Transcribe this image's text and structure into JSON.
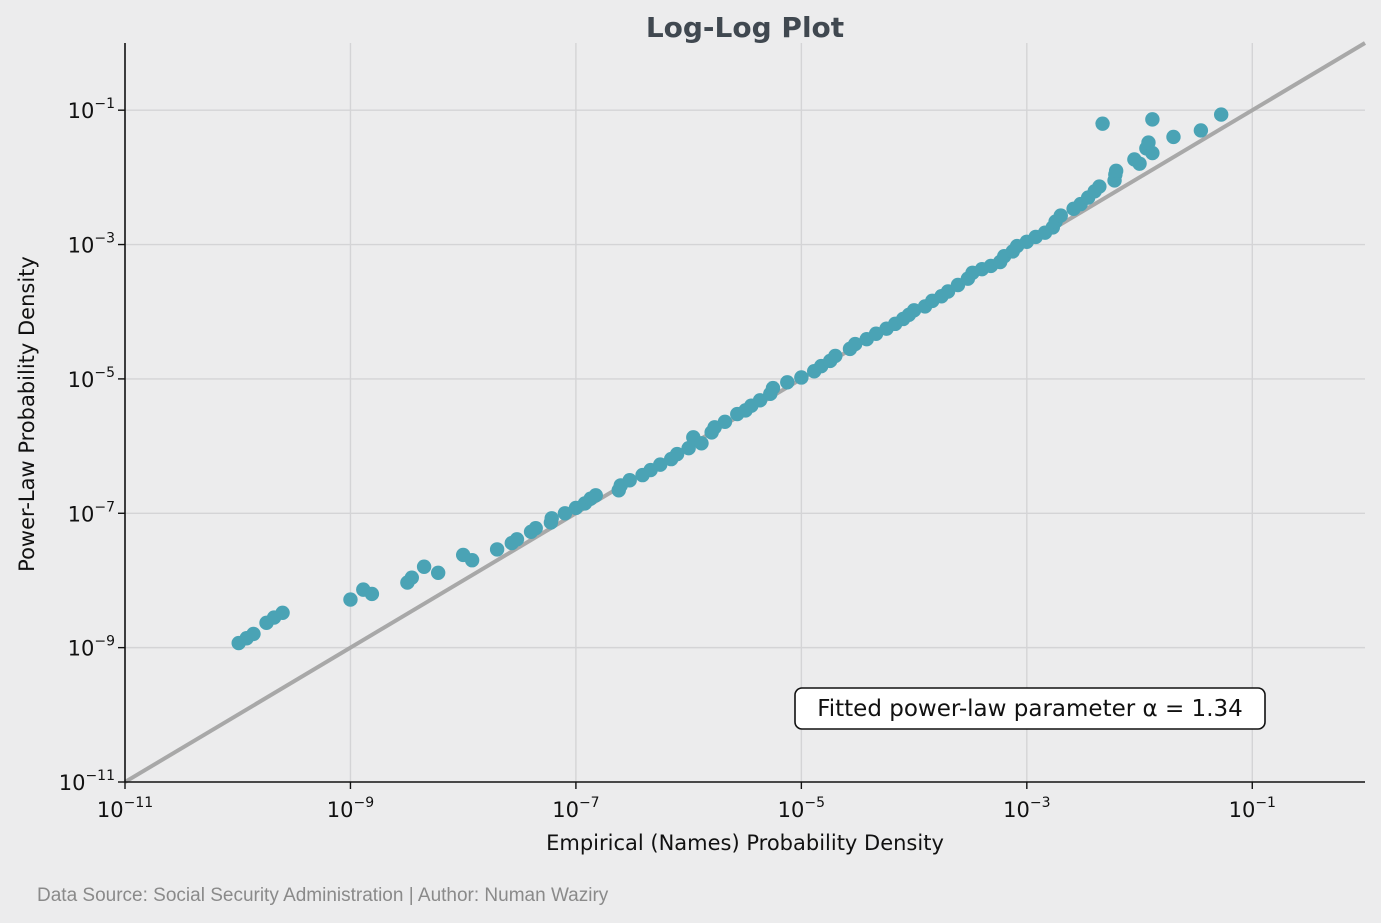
{
  "chart_data": {
    "type": "scatter",
    "title": "Log-Log Plot",
    "xlabel": "Empirical (Names) Probability Density",
    "ylabel": "Power-Law Probability Density",
    "xscale": "log",
    "yscale": "log",
    "xlim": [
      1e-11,
      1
    ],
    "ylim": [
      1e-11,
      1
    ],
    "x_ticks": [
      {
        "base": "10",
        "exp": "−11",
        "value": 1e-11
      },
      {
        "base": "10",
        "exp": "−9",
        "value": 1e-09
      },
      {
        "base": "10",
        "exp": "−7",
        "value": 1e-07
      },
      {
        "base": "10",
        "exp": "−5",
        "value": 1e-05
      },
      {
        "base": "10",
        "exp": "−3",
        "value": 0.001
      },
      {
        "base": "10",
        "exp": "−1",
        "value": 0.1
      }
    ],
    "y_ticks": [
      {
        "base": "10",
        "exp": "−11",
        "value": 1e-11
      },
      {
        "base": "10",
        "exp": "−9",
        "value": 1e-09
      },
      {
        "base": "10",
        "exp": "−7",
        "value": 1e-07
      },
      {
        "base": "10",
        "exp": "−5",
        "value": 1e-05
      },
      {
        "base": "10",
        "exp": "−3",
        "value": 0.001
      },
      {
        "base": "10",
        "exp": "−1",
        "value": 0.1
      }
    ],
    "grid": true,
    "reference_line": {
      "type": "identity",
      "color": "#a8a8a8"
    },
    "point_color": "#4aa3b5",
    "annotation": "Fitted power-law parameter α = 1.34",
    "annotation_position": "bottom-right",
    "points": [
      [
        1.02e-10,
        1.17e-09
      ],
      [
        1.2e-10,
        1.38e-09
      ],
      [
        1.38e-10,
        1.6e-09
      ],
      [
        1.8e-10,
        2.34e-09
      ],
      [
        2.1e-10,
        2.8e-09
      ],
      [
        2.5e-10,
        3.3e-09
      ],
      [
        1e-09,
        5.2e-09
      ],
      [
        1.3e-09,
        7.3e-09
      ],
      [
        1.55e-09,
        6.3e-09
      ],
      [
        3.2e-09,
        9.3e-09
      ],
      [
        3.5e-09,
        1.1e-08
      ],
      [
        4.5e-09,
        1.6e-08
      ],
      [
        6e-09,
        1.3e-08
      ],
      [
        1e-08,
        2.4e-08
      ],
      [
        1.2e-08,
        2e-08
      ],
      [
        2e-08,
        2.9e-08
      ],
      [
        2.7e-08,
        3.6e-08
      ],
      [
        3e-08,
        4.1e-08
      ],
      [
        4e-08,
        5.3e-08
      ],
      [
        4.4e-08,
        6e-08
      ],
      [
        6e-08,
        7.3e-08
      ],
      [
        6.1e-08,
        8.4e-08
      ],
      [
        8e-08,
        1e-07
      ],
      [
        1e-07,
        1.2e-07
      ],
      [
        1.2e-07,
        1.4e-07
      ],
      [
        1.35e-07,
        1.65e-07
      ],
      [
        1.5e-07,
        1.85e-07
      ],
      [
        2.4e-07,
        2.2e-07
      ],
      [
        2.5e-07,
        2.6e-07
      ],
      [
        3e-07,
        3.1e-07
      ],
      [
        3.9e-07,
        3.7e-07
      ],
      [
        4.6e-07,
        4.4e-07
      ],
      [
        5.6e-07,
        5.3e-07
      ],
      [
        7e-07,
        6.4e-07
      ],
      [
        7.9e-07,
        7.6e-07
      ],
      [
        1e-06,
        9.3e-07
      ],
      [
        1.1e-06,
        1.35e-06
      ],
      [
        1.3e-06,
        1.1e-06
      ],
      [
        1.6e-06,
        1.6e-06
      ],
      [
        1.7e-06,
        1.9e-06
      ],
      [
        2.1e-06,
        2.3e-06
      ],
      [
        2.7e-06,
        3e-06
      ],
      [
        3.2e-06,
        3.4e-06
      ],
      [
        3.6e-06,
        4e-06
      ],
      [
        4.3e-06,
        4.8e-06
      ],
      [
        5.3e-06,
        6e-06
      ],
      [
        5.6e-06,
        7.3e-06
      ],
      [
        7.5e-06,
        8.9e-06
      ],
      [
        1e-05,
        1.05e-05
      ],
      [
        1.3e-05,
        1.3e-05
      ],
      [
        1.5e-05,
        1.55e-05
      ],
      [
        1.8e-05,
        1.85e-05
      ],
      [
        2e-05,
        2.2e-05
      ],
      [
        2.7e-05,
        2.8e-05
      ],
      [
        3e-05,
        3.3e-05
      ],
      [
        3.8e-05,
        3.9e-05
      ],
      [
        4.6e-05,
        4.7e-05
      ],
      [
        5.7e-05,
        5.6e-05
      ],
      [
        6.8e-05,
        6.6e-05
      ],
      [
        8e-05,
        7.8e-05
      ],
      [
        9e-05,
        9e-05
      ],
      [
        0.0001,
        0.000105
      ],
      [
        0.000125,
        0.00012
      ],
      [
        0.000145,
        0.000145
      ],
      [
        0.000175,
        0.00017
      ],
      [
        0.0002,
        0.0002
      ],
      [
        0.000245,
        0.00025
      ],
      [
        0.0003,
        0.00031
      ],
      [
        0.00033,
        0.00038
      ],
      [
        0.0004,
        0.00043
      ],
      [
        0.00048,
        0.00048
      ],
      [
        0.00058,
        0.00055
      ],
      [
        0.00063,
        0.00067
      ],
      [
        0.00075,
        0.00079
      ],
      [
        0.00082,
        0.00095
      ],
      [
        0.001,
        0.0011
      ],
      [
        0.0012,
        0.0013
      ],
      [
        0.00145,
        0.0015
      ],
      [
        0.0017,
        0.0018
      ],
      [
        0.0018,
        0.0022
      ],
      [
        0.002,
        0.0027
      ],
      [
        0.0026,
        0.0034
      ],
      [
        0.003,
        0.004
      ],
      [
        0.0035,
        0.005
      ],
      [
        0.004,
        0.0062
      ],
      [
        0.0044,
        0.0073
      ],
      [
        0.006,
        0.009
      ],
      [
        0.0061,
        0.011
      ],
      [
        0.0062,
        0.0125
      ],
      [
        0.0047,
        0.063
      ],
      [
        0.009,
        0.0185
      ],
      [
        0.01,
        0.016
      ],
      [
        0.0115,
        0.027
      ],
      [
        0.012,
        0.033
      ],
      [
        0.013,
        0.023
      ],
      [
        0.013,
        0.073
      ],
      [
        0.02,
        0.04
      ],
      [
        0.035,
        0.05
      ],
      [
        0.053,
        0.086
      ]
    ]
  },
  "footer": "Data Source: Social Security Administration  |  Author: Numan Waziry"
}
